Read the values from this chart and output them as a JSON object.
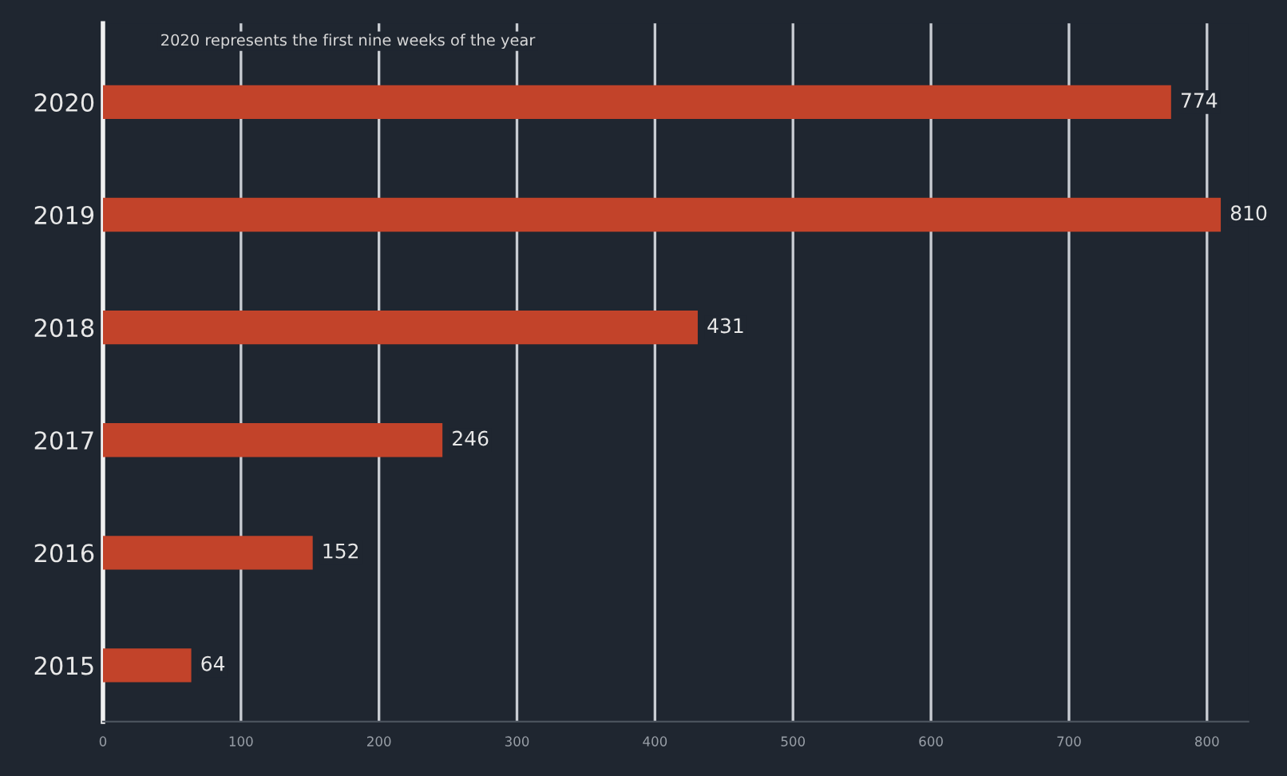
{
  "chart_data": {
    "type": "bar",
    "orientation": "horizontal",
    "categories": [
      "2020",
      "2019",
      "2018",
      "2017",
      "2016",
      "2015"
    ],
    "values": [
      774,
      810,
      431,
      246,
      152,
      64
    ],
    "color": "#c2432a",
    "data_labels": true,
    "xlim": [
      0,
      830
    ],
    "xticks": [
      0,
      100,
      200,
      300,
      400,
      500,
      600,
      700,
      800
    ],
    "grid": "x",
    "annotations": [
      "2020 represents the first nine weeks of the year"
    ]
  }
}
